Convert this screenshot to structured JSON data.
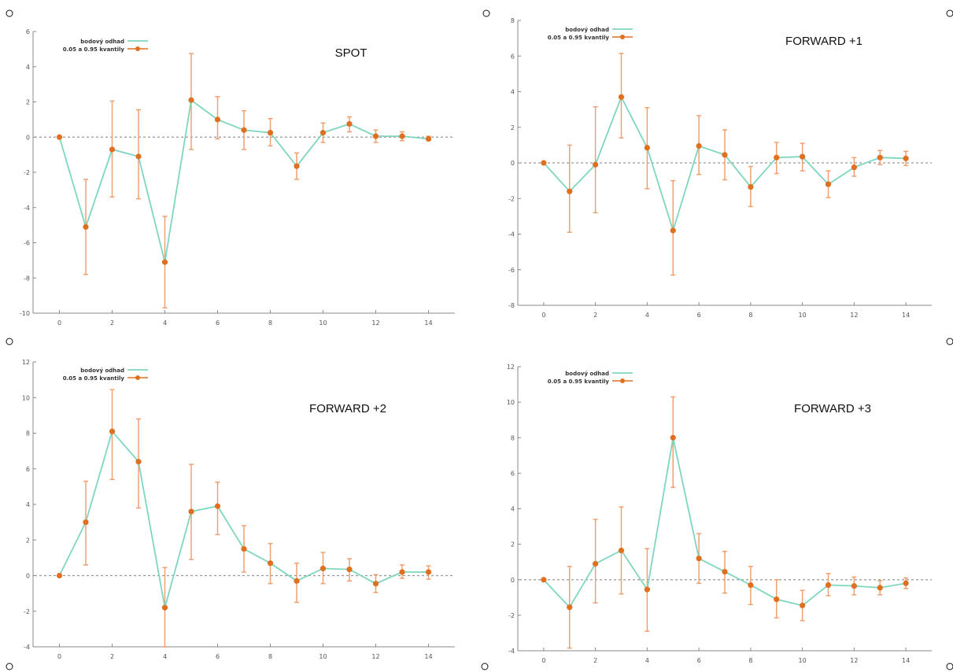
{
  "colors": {
    "estimate_line": "#7fd6bf",
    "quantile_marker": "#e07020",
    "errorbar": "#f0a070",
    "zero_line": "#999999",
    "axis": "#888888"
  },
  "legend": {
    "estimate_label": "bodový odhad",
    "quantile_label": "0.05 a 0.95 kvantily"
  },
  "chart_data": [
    {
      "type": "line",
      "title": "SPOT",
      "xlabel": "",
      "ylabel": "",
      "xlim": [
        -1,
        15
      ],
      "ylim": [
        -10,
        6
      ],
      "xticks": [
        "0",
        "2",
        "4",
        "6",
        "8",
        "10",
        "12",
        "14"
      ],
      "yticks": [
        "-10",
        "-8",
        "-6",
        "-4",
        "-2",
        "0",
        "2",
        "4",
        "6"
      ],
      "grid": false,
      "legend_position": "top-left",
      "x": [
        0,
        1,
        2,
        3,
        4,
        5,
        6,
        7,
        8,
        9,
        10,
        11,
        12,
        13,
        14
      ],
      "series": [
        {
          "name": "bodový odhad",
          "values": [
            0,
            -5.1,
            -0.7,
            -1.1,
            -7.1,
            2.1,
            1.0,
            0.4,
            0.25,
            -1.65,
            0.25,
            0.75,
            0.05,
            0.05,
            -0.1
          ]
        },
        {
          "name": "0.05 a 0.95 kvantily",
          "values": [
            0,
            -5.1,
            -0.7,
            -1.1,
            -7.1,
            2.1,
            1.0,
            0.4,
            0.25,
            -1.65,
            0.25,
            0.75,
            0.05,
            0.05,
            -0.1
          ],
          "lower": [
            0,
            -7.8,
            -3.4,
            -3.5,
            -9.7,
            -0.7,
            -0.1,
            -0.7,
            -0.5,
            -2.4,
            -0.3,
            0.3,
            -0.3,
            -0.2,
            -0.2
          ],
          "upper": [
            0,
            -2.4,
            2.05,
            1.55,
            -4.5,
            4.75,
            2.3,
            1.5,
            1.05,
            -0.9,
            0.8,
            1.15,
            0.4,
            0.3,
            0.05
          ]
        }
      ]
    },
    {
      "type": "line",
      "title": "FORWARD +1",
      "xlabel": "",
      "ylabel": "",
      "xlim": [
        -1,
        15
      ],
      "ylim": [
        -8,
        8
      ],
      "xticks": [
        "0",
        "2",
        "4",
        "6",
        "8",
        "10",
        "12",
        "14"
      ],
      "yticks": [
        "-8",
        "-6",
        "-4",
        "-2",
        "0",
        "2",
        "4",
        "6",
        "8"
      ],
      "grid": false,
      "legend_position": "top-left",
      "x": [
        0,
        1,
        2,
        3,
        4,
        5,
        6,
        7,
        8,
        9,
        10,
        11,
        12,
        13,
        14
      ],
      "series": [
        {
          "name": "bodový odhad",
          "values": [
            0,
            -1.6,
            -0.1,
            3.7,
            0.85,
            -3.8,
            0.95,
            0.45,
            -1.35,
            0.3,
            0.35,
            -1.2,
            -0.25,
            0.3,
            0.25
          ]
        },
        {
          "name": "0.05 a 0.95 kvantily",
          "values": [
            0,
            -1.6,
            -0.1,
            3.7,
            0.85,
            -3.8,
            0.95,
            0.45,
            -1.35,
            0.3,
            0.35,
            -1.2,
            -0.25,
            0.3,
            0.25
          ],
          "lower": [
            0,
            -3.9,
            -2.8,
            1.4,
            -1.45,
            -6.3,
            -0.65,
            -0.95,
            -2.45,
            -0.6,
            -0.45,
            -1.95,
            -0.75,
            -0.1,
            -0.15
          ],
          "upper": [
            0,
            1.0,
            3.15,
            6.15,
            3.1,
            -1.0,
            2.65,
            1.85,
            -0.2,
            1.15,
            1.1,
            -0.45,
            0.3,
            0.7,
            0.65
          ]
        }
      ]
    },
    {
      "type": "line",
      "title": "FORWARD +2",
      "xlabel": "",
      "ylabel": "",
      "xlim": [
        -1,
        15
      ],
      "ylim": [
        -4,
        12
      ],
      "xticks": [
        "0",
        "2",
        "4",
        "6",
        "8",
        "10",
        "12",
        "14"
      ],
      "yticks": [
        "-4",
        "-2",
        "0",
        "2",
        "4",
        "6",
        "8",
        "10",
        "12"
      ],
      "grid": false,
      "legend_position": "top-left",
      "x": [
        0,
        1,
        2,
        3,
        4,
        5,
        6,
        7,
        8,
        9,
        10,
        11,
        12,
        13,
        14
      ],
      "series": [
        {
          "name": "bodový odhad",
          "values": [
            0,
            3.0,
            8.1,
            6.4,
            -1.8,
            3.6,
            3.9,
            1.5,
            0.7,
            -0.3,
            0.4,
            0.35,
            -0.45,
            0.2,
            0.2
          ]
        },
        {
          "name": "0.05 a 0.95 kvantily",
          "values": [
            0,
            3.0,
            8.1,
            6.4,
            -1.8,
            3.6,
            3.9,
            1.5,
            0.7,
            -0.3,
            0.4,
            0.35,
            -0.45,
            0.2,
            0.2
          ],
          "lower": [
            0,
            0.6,
            5.4,
            3.8,
            -4.0,
            0.9,
            2.3,
            0.2,
            -0.45,
            -1.5,
            -0.45,
            -0.3,
            -0.95,
            -0.15,
            -0.2
          ],
          "upper": [
            0,
            5.3,
            10.45,
            8.8,
            0.45,
            6.25,
            5.25,
            2.8,
            1.8,
            0.7,
            1.3,
            0.95,
            0.05,
            0.6,
            0.55
          ]
        }
      ]
    },
    {
      "type": "line",
      "title": "FORWARD +3",
      "xlabel": "",
      "ylabel": "",
      "xlim": [
        -1,
        15
      ],
      "ylim": [
        -4,
        12
      ],
      "xticks": [
        "0",
        "2",
        "4",
        "6",
        "8",
        "10",
        "12",
        "14"
      ],
      "yticks": [
        "-4",
        "-2",
        "0",
        "2",
        "4",
        "6",
        "8",
        "10",
        "12"
      ],
      "grid": false,
      "legend_position": "top-left",
      "x": [
        0,
        1,
        2,
        3,
        4,
        5,
        6,
        7,
        8,
        9,
        10,
        11,
        12,
        13,
        14
      ],
      "series": [
        {
          "name": "bodový odhad",
          "values": [
            0,
            -1.55,
            0.9,
            1.65,
            -0.55,
            8.0,
            1.2,
            0.45,
            -0.3,
            -1.1,
            -1.45,
            -0.3,
            -0.35,
            -0.45,
            -0.2
          ]
        },
        {
          "name": "0.05 a 0.95 kvantily",
          "values": [
            0,
            -1.55,
            0.9,
            1.65,
            -0.55,
            8.0,
            1.2,
            0.45,
            -0.3,
            -1.1,
            -1.45,
            -0.3,
            -0.35,
            -0.45,
            -0.2
          ],
          "lower": [
            0,
            -3.85,
            -1.3,
            -0.8,
            -2.9,
            5.2,
            -0.2,
            -0.75,
            -1.4,
            -2.15,
            -2.3,
            -0.9,
            -0.85,
            -0.85,
            -0.5
          ],
          "upper": [
            0,
            0.75,
            3.4,
            4.1,
            1.75,
            10.3,
            2.6,
            1.6,
            0.75,
            0.0,
            -0.6,
            0.35,
            0.15,
            -0.05,
            0.1
          ]
        }
      ]
    }
  ]
}
